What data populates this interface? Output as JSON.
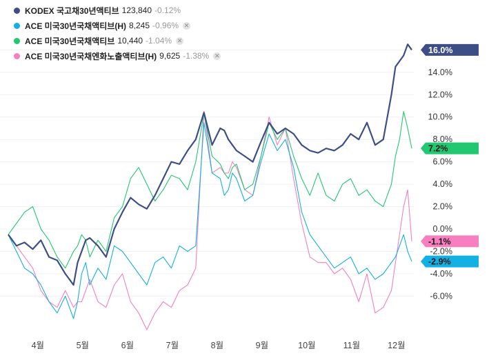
{
  "legend": [
    {
      "name": "KODEX 국고채30년액티브",
      "price": "123,840",
      "change": "-0.12%",
      "color": "#3d4e86",
      "closable": false
    },
    {
      "name": "ACE 미국30년국채액티브(H)",
      "price": "8,245",
      "change": "-0.96%",
      "color": "#12b0e3",
      "closable": true
    },
    {
      "name": "ACE 미국30년국채액티브",
      "price": "10,440",
      "change": "-1.04%",
      "color": "#22c771",
      "closable": true
    },
    {
      "name": "ACE 미국30년국채엔화노출액티브(H)",
      "price": "9,625",
      "change": "-1.38%",
      "color": "#f77fc0",
      "closable": true
    }
  ],
  "chart_data": {
    "type": "line",
    "title": "",
    "xlabel": "",
    "ylabel": "",
    "ylim": [
      -8.5,
      17.5
    ],
    "y_ticks": [
      "16.0%",
      "14.0%",
      "12.0%",
      "10.0%",
      "8.0%",
      "6.0%",
      "4.0%",
      "2.0%",
      "0.0%",
      "-2.0%",
      "-4.0%",
      "-6.0%"
    ],
    "y_tick_values": [
      16,
      14,
      12,
      10,
      8,
      6,
      4,
      2,
      0,
      -2,
      -4,
      -6
    ],
    "x_labels": [
      "4월",
      "5월",
      "6월",
      "7월",
      "8월",
      "9월",
      "10월",
      "11월",
      "12월"
    ],
    "x_label_positions": [
      14.5,
      36.5,
      58.5,
      80.5,
      102.5,
      124.5,
      146.5,
      168.5,
      190.5
    ],
    "x_range": [
      0,
      199
    ],
    "series": [
      {
        "name": "KODEX 국고채30년액티브",
        "color": "#3d4e86",
        "end_label": "16.0%",
        "x": [
          0,
          4,
          8,
          12,
          16,
          20,
          24,
          28,
          32,
          34,
          36,
          38,
          40,
          44,
          48,
          52,
          56,
          60,
          64,
          68,
          72,
          76,
          80,
          84,
          88,
          92,
          96,
          100,
          104,
          106,
          108,
          110,
          112,
          116,
          120,
          124,
          128,
          132,
          136,
          140,
          144,
          148,
          152,
          156,
          160,
          164,
          168,
          172,
          176,
          180,
          184,
          188,
          190,
          192,
          194,
          196,
          198
        ],
        "values": [
          -0.5,
          -1.5,
          -1.2,
          -1.8,
          -1.0,
          -2.5,
          -2.8,
          -4.0,
          -5.0,
          -3.0,
          -2.0,
          -1.0,
          -0.8,
          -1.5,
          -2.5,
          0.0,
          1.5,
          2.8,
          2.2,
          1.8,
          3.0,
          4.5,
          6.0,
          5.8,
          7.0,
          8.0,
          10.4,
          7.5,
          9.0,
          8.8,
          8.0,
          7.5,
          7.0,
          6.5,
          6.0,
          7.8,
          9.5,
          8.5,
          9.0,
          8.5,
          7.5,
          7.0,
          6.8,
          7.2,
          7.0,
          7.5,
          8.5,
          8.0,
          9.5,
          7.5,
          8.0,
          12.0,
          14.5,
          15.0,
          15.5,
          16.5,
          16.0
        ]
      },
      {
        "name": "ACE 미국30년국채액티브(H)",
        "color": "#12b0e3",
        "end_label": "-2.9%",
        "x": [
          0,
          4,
          8,
          12,
          16,
          20,
          24,
          28,
          32,
          34,
          36,
          38,
          40,
          44,
          48,
          52,
          56,
          60,
          64,
          68,
          72,
          76,
          80,
          84,
          88,
          92,
          96,
          100,
          104,
          106,
          108,
          110,
          112,
          116,
          120,
          124,
          128,
          132,
          136,
          140,
          144,
          148,
          152,
          156,
          160,
          164,
          168,
          172,
          176,
          180,
          184,
          188,
          190,
          192,
          194,
          196,
          198
        ],
        "values": [
          -0.5,
          -2.0,
          -3.5,
          -4.0,
          -5.0,
          -6.5,
          -7.5,
          -6.0,
          -8.0,
          -6.5,
          -4.0,
          -3.0,
          -5.0,
          -3.5,
          -4.5,
          -1.5,
          -2.0,
          -3.0,
          -4.0,
          -5.0,
          -3.0,
          -2.5,
          -3.5,
          -1.5,
          -2.0,
          -1.5,
          9.5,
          5.0,
          4.5,
          3.0,
          3.5,
          5.0,
          4.5,
          2.5,
          3.0,
          6.0,
          8.5,
          7.0,
          8.0,
          5.5,
          1.5,
          -0.5,
          -1.5,
          -2.5,
          -3.5,
          -3.0,
          -2.5,
          -4.0,
          -3.5,
          -4.5,
          -4.0,
          -3.0,
          -2.5,
          -1.5,
          -0.5,
          -2.0,
          -2.9
        ]
      },
      {
        "name": "ACE 미국30년국채액티브",
        "color": "#22c771",
        "end_label": "7.2%",
        "x": [
          0,
          4,
          8,
          12,
          16,
          20,
          24,
          28,
          32,
          34,
          36,
          38,
          40,
          44,
          48,
          52,
          56,
          60,
          64,
          68,
          72,
          76,
          80,
          84,
          88,
          92,
          96,
          100,
          104,
          106,
          108,
          110,
          112,
          116,
          120,
          124,
          128,
          132,
          136,
          140,
          144,
          148,
          152,
          156,
          160,
          164,
          168,
          172,
          176,
          180,
          184,
          188,
          190,
          192,
          194,
          196,
          198
        ],
        "values": [
          -0.5,
          0.5,
          1.5,
          2.0,
          0.0,
          -1.0,
          -2.5,
          -3.5,
          -2.0,
          -1.5,
          -0.5,
          -1.0,
          -2.5,
          -1.0,
          -2.0,
          1.0,
          2.0,
          4.5,
          5.5,
          4.0,
          2.5,
          3.5,
          4.8,
          4.5,
          3.5,
          6.0,
          10.3,
          6.5,
          5.8,
          5.0,
          4.5,
          5.5,
          5.8,
          3.5,
          4.0,
          6.5,
          9.5,
          8.0,
          9.0,
          6.5,
          4.5,
          3.0,
          5.0,
          3.0,
          2.5,
          4.0,
          4.5,
          3.0,
          3.5,
          2.5,
          2.0,
          4.0,
          6.5,
          8.0,
          10.5,
          9.0,
          7.2
        ]
      },
      {
        "name": "ACE 미국30년국채엔화노출액티브(H)",
        "color": "#f77fc0",
        "end_label": "-1.1%",
        "x": [
          0,
          4,
          8,
          12,
          16,
          20,
          24,
          28,
          32,
          34,
          36,
          38,
          40,
          44,
          48,
          52,
          56,
          60,
          64,
          68,
          72,
          76,
          80,
          84,
          88,
          92,
          96,
          100,
          104,
          106,
          108,
          110,
          112,
          116,
          120,
          124,
          128,
          132,
          136,
          140,
          144,
          148,
          152,
          156,
          160,
          164,
          168,
          172,
          176,
          180,
          184,
          188,
          190,
          192,
          194,
          196,
          198
        ],
        "values": [
          -0.5,
          -1.5,
          -2.5,
          -3.5,
          -5.5,
          -6.5,
          -7.0,
          -5.5,
          -7.0,
          -6.5,
          -6.5,
          -5.5,
          -4.5,
          -6.5,
          -7.0,
          -5.0,
          -4.0,
          -6.5,
          -7.5,
          -9.0,
          -7.5,
          -6.5,
          -7.0,
          -5.5,
          -5.0,
          -3.5,
          10.5,
          5.0,
          5.5,
          5.0,
          5.0,
          6.0,
          5.5,
          3.5,
          3.0,
          6.5,
          10.0,
          7.5,
          9.0,
          4.5,
          0.5,
          -2.5,
          -3.0,
          -3.0,
          -4.0,
          -3.5,
          -4.5,
          -6.5,
          -4.0,
          -7.5,
          -7.0,
          -5.5,
          -3.0,
          -0.5,
          2.0,
          3.5,
          -1.1
        ]
      }
    ]
  }
}
